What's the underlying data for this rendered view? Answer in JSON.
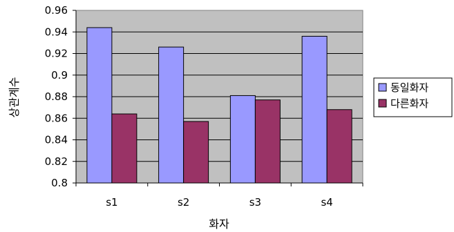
{
  "chart_data": {
    "type": "bar",
    "title": "",
    "xlabel": "화자",
    "ylabel": "상관계수",
    "categories": [
      "s1",
      "s2",
      "s3",
      "s4"
    ],
    "ylim": [
      0.8,
      0.96
    ],
    "ytick_step": 0.02,
    "yticks": [
      "0.8",
      "0.82",
      "0.84",
      "0.86",
      "0.88",
      "0.9",
      "0.92",
      "0.94",
      "0.96"
    ],
    "grid": true,
    "legend_position": "right",
    "plot_background": "#c0c0c0",
    "series": [
      {
        "name": "동일화자",
        "values": [
          0.944,
          0.926,
          0.881,
          0.936
        ],
        "color": "#9999ff"
      },
      {
        "name": "다른화자",
        "values": [
          0.864,
          0.857,
          0.877,
          0.868
        ],
        "color": "#993366"
      }
    ]
  }
}
